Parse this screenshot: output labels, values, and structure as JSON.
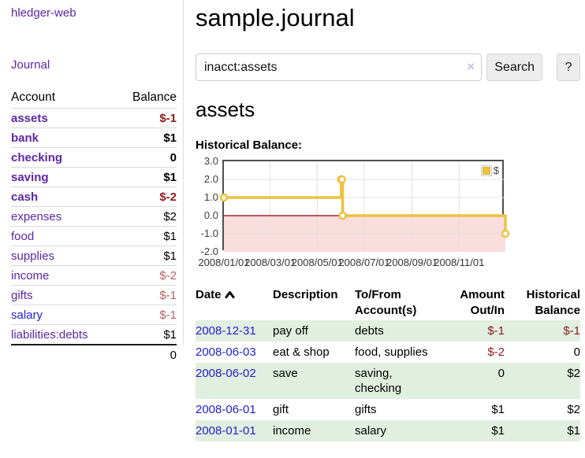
{
  "sidebar": {
    "app_title": "hledger-web",
    "journal_label": "Journal",
    "columns": {
      "account": "Account",
      "balance": "Balance"
    },
    "accounts": [
      {
        "name": "assets",
        "balance": "$-1"
      },
      {
        "name": "bank",
        "balance": "$1"
      },
      {
        "name": "checking",
        "balance": "0"
      },
      {
        "name": "saving",
        "balance": "$1"
      },
      {
        "name": "cash",
        "balance": "$-2"
      },
      {
        "name": "expenses",
        "balance": "$2"
      },
      {
        "name": "food",
        "balance": "$1"
      },
      {
        "name": "supplies",
        "balance": "$1"
      },
      {
        "name": "income",
        "balance": "$-2"
      },
      {
        "name": "gifts",
        "balance": "$-1"
      },
      {
        "name": "salary",
        "balance": "$-1"
      },
      {
        "name": "liabilities:debts",
        "balance": "$1"
      }
    ],
    "total": "0"
  },
  "main": {
    "title": "sample.journal",
    "account_heading": "assets"
  },
  "search": {
    "value": "inacct:assets",
    "button_label": "Search",
    "help_label": "?",
    "clear_glyph": "×"
  },
  "chart_data": {
    "type": "line",
    "title": "Historical Balance:",
    "step": true,
    "series": [
      {
        "name": "$",
        "color": "#edc240",
        "points": [
          [
            "2008-01-01",
            1
          ],
          [
            "2008-06-01",
            2
          ],
          [
            "2008-06-02",
            2
          ],
          [
            "2008-06-03",
            0
          ],
          [
            "2008-12-31",
            -1
          ]
        ]
      }
    ],
    "x_range": [
      "2008-01-01",
      "2008-12-31"
    ],
    "x_ticks": [
      "2008/01/01",
      "2008/03/01",
      "2008/05/01",
      "2008/07/01",
      "2008/09/01",
      "2008/11/01"
    ],
    "y_ticks": [
      3.0,
      2.0,
      1.0,
      0.0,
      -1.0,
      -2.0
    ],
    "ylim": [
      -2,
      3
    ],
    "grid": true,
    "grid_color": "#e0e0e0",
    "negative_region_color": "#fadddd",
    "zero_line_color": "#8b0000",
    "legend": {
      "label": "$",
      "position": "top-right"
    }
  },
  "transactions": {
    "columns": {
      "date": "Date",
      "description": "Description",
      "accounts": "To/From Account(s)",
      "amount": "Amount Out/In",
      "balance": "Historical Balance"
    },
    "rows": [
      {
        "date": "2008-12-31",
        "description": "pay off",
        "accounts": "debts",
        "amount": "$-1",
        "balance": "$-1"
      },
      {
        "date": "2008-06-03",
        "description": "eat & shop",
        "accounts": "food, supplies",
        "amount": "$-2",
        "balance": "0"
      },
      {
        "date": "2008-06-02",
        "description": "save",
        "accounts": "saving, checking",
        "amount": "0",
        "balance": "$2"
      },
      {
        "date": "2008-06-01",
        "description": "gift",
        "accounts": "gifts",
        "amount": "$1",
        "balance": "$2"
      },
      {
        "date": "2008-01-01",
        "description": "income",
        "accounts": "salary",
        "amount": "$1",
        "balance": "$1"
      }
    ]
  }
}
